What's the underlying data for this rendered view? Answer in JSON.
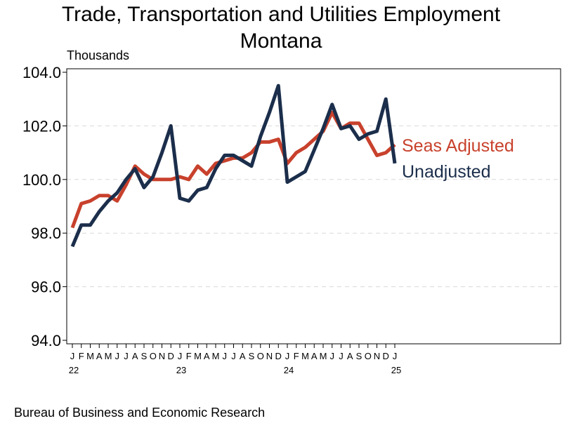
{
  "title_line1": "Trade, Transportation and Utilities Employment",
  "title_line2": "Montana",
  "source": "Bureau of Business and Economic Research",
  "chart_data": {
    "type": "line",
    "title": "Trade, Transportation and Utilities Employment Montana",
    "ylabel": "Thousands",
    "ylim": [
      94.0,
      104.0
    ],
    "yticks": [
      "94.0",
      "96.0",
      "98.0",
      "100.0",
      "102.0",
      "104.0"
    ],
    "ytick_values": [
      94,
      96,
      98,
      100,
      102,
      104
    ],
    "grid": "horizontal dashed",
    "x": [
      "2022-01",
      "2022-02",
      "2022-03",
      "2022-04",
      "2022-05",
      "2022-06",
      "2022-07",
      "2022-08",
      "2022-09",
      "2022-10",
      "2022-11",
      "2022-12",
      "2023-01",
      "2023-02",
      "2023-03",
      "2023-04",
      "2023-05",
      "2023-06",
      "2023-07",
      "2023-08",
      "2023-09",
      "2023-10",
      "2023-11",
      "2023-12",
      "2024-01",
      "2024-02",
      "2024-03",
      "2024-04",
      "2024-05",
      "2024-06",
      "2024-07",
      "2024-08",
      "2024-09",
      "2024-10",
      "2024-11",
      "2024-12",
      "2025-01"
    ],
    "month_ticks": [
      "J",
      "F",
      "M",
      "A",
      "M",
      "J",
      "J",
      "A",
      "S",
      "O",
      "N",
      "D",
      "J",
      "F",
      "M",
      "A",
      "M",
      "J",
      "J",
      "A",
      "S",
      "O",
      "N",
      "D",
      "J",
      "F",
      "M",
      "A",
      "M",
      "J",
      "J",
      "A",
      "S",
      "O",
      "N",
      "D",
      "J"
    ],
    "year_ticks": [
      {
        "label": "22",
        "at": "2022-01"
      },
      {
        "label": "23",
        "at": "2023-01"
      },
      {
        "label": "24",
        "at": "2024-01"
      },
      {
        "label": "25",
        "at": "2025-01"
      }
    ],
    "series": [
      {
        "name": "Seas Adjusted",
        "color": "#c8412c",
        "values": [
          98.2,
          99.1,
          99.2,
          99.4,
          99.4,
          99.2,
          99.8,
          100.5,
          100.2,
          100.0,
          100.0,
          100.0,
          100.1,
          100.0,
          100.5,
          100.2,
          100.6,
          100.7,
          100.8,
          100.8,
          101.0,
          101.4,
          101.4,
          101.5,
          100.6,
          101.0,
          101.2,
          101.5,
          101.8,
          102.5,
          101.9,
          102.1,
          102.1,
          101.5,
          100.9,
          101.0,
          101.3
        ]
      },
      {
        "name": "Unadjusted",
        "color": "#1b2e4b",
        "values": [
          97.5,
          98.3,
          98.3,
          98.8,
          99.2,
          99.5,
          100.0,
          100.4,
          99.7,
          100.1,
          101.0,
          102.0,
          99.3,
          99.2,
          99.6,
          99.7,
          100.4,
          100.9,
          100.9,
          100.7,
          100.5,
          101.6,
          102.5,
          103.5,
          99.9,
          100.1,
          100.3,
          101.1,
          101.9,
          102.8,
          101.9,
          102.0,
          101.5,
          101.7,
          101.8,
          103.0,
          100.6
        ]
      }
    ]
  }
}
